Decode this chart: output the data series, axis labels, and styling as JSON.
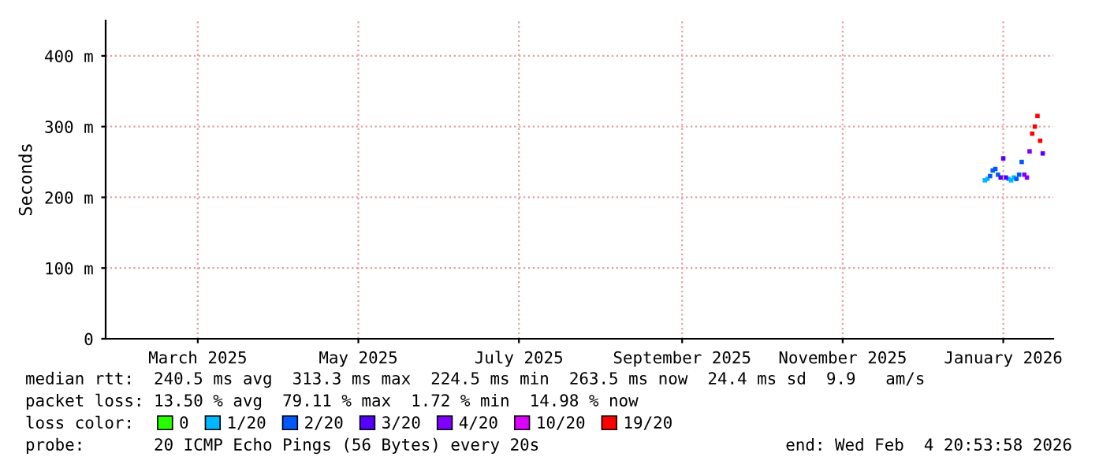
{
  "chart_data": {
    "type": "scatter",
    "marker": "square",
    "ylabel": "Seconds",
    "xlim": [
      "2025-02-09",
      "2026-02-04"
    ],
    "xticks": [
      {
        "value": "2025-03-16",
        "label": "March 2025"
      },
      {
        "value": "2025-05-16",
        "label": "May 2025"
      },
      {
        "value": "2025-07-16",
        "label": "July 2025"
      },
      {
        "value": "2025-09-16",
        "label": "September 2025"
      },
      {
        "value": "2025-11-16",
        "label": "November 2025"
      },
      {
        "value": "2026-01-16",
        "label": "January 2026"
      }
    ],
    "ylim": [
      0,
      450
    ],
    "yticks": [
      0,
      {
        "value": 100,
        "label": "100 m"
      },
      {
        "value": 200,
        "label": "200 m"
      },
      {
        "value": 300,
        "label": "300 m"
      },
      {
        "value": 400,
        "label": "400 m"
      }
    ],
    "grid": true,
    "legend": "bottom left",
    "legend_title": "loss color:",
    "series": [
      {
        "name": "0",
        "color": "#26ff00"
      },
      {
        "name": "1/20",
        "color": "#00b8ff",
        "x": [
          "2026-01-09",
          "2026-01-10",
          "2026-01-18",
          "2026-01-19",
          "2026-01-20"
        ],
        "values": [
          224,
          226,
          226,
          224,
          228
        ]
      },
      {
        "name": "2/20",
        "color": "#0059ff",
        "x": [
          "2026-01-11",
          "2026-01-12",
          "2026-01-13",
          "2026-01-14",
          "2026-01-21",
          "2026-01-22",
          "2026-01-23"
        ],
        "values": [
          230,
          238,
          240,
          232,
          226,
          232,
          250
        ]
      },
      {
        "name": "3/20",
        "color": "#5500ff",
        "x": [
          "2026-01-15",
          "2026-01-16",
          "2026-01-17",
          "2026-01-31"
        ],
        "values": [
          228,
          255,
          228,
          262
        ]
      },
      {
        "name": "4/20",
        "color": "#7e00ff",
        "x": [
          "2026-01-24",
          "2026-01-25",
          "2026-01-26"
        ],
        "values": [
          232,
          228,
          265
        ]
      },
      {
        "name": "10/20",
        "color": "#dd00ff"
      },
      {
        "name": "19/20",
        "color": "#ff0000",
        "x": [
          "2026-01-27",
          "2026-01-28",
          "2026-01-29",
          "2026-01-30"
        ],
        "values": [
          290,
          300,
          315,
          280
        ]
      }
    ],
    "annotations": [
      "median rtt:  240.5 ms avg  313.3 ms max  224.5 ms min  263.5 ms now  24.4 ms sd  9.9   am/s",
      "packet loss: 13.50 % avg  79.11 % max  1.72 % min  14.98 % now",
      "probe:       20 ICMP Echo Pings (56 Bytes) every 20s",
      "end: Wed Feb  4 20:53:58 2026"
    ]
  }
}
